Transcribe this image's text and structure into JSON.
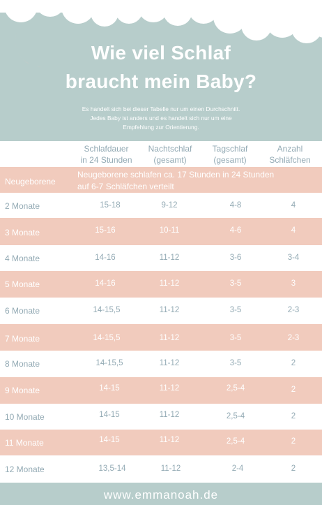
{
  "title": {
    "line1": "Wie viel Schlaf",
    "line2": "braucht mein Baby?"
  },
  "subtitle": [
    "Es handelt sich bei dieser Tabelle nur um einen Durchschnitt.",
    "Jedes Baby ist anders und es handelt sich nur um eine",
    "Empfehlung zur Orientierung."
  ],
  "columns": [
    [
      "Schlafdauer",
      "in 24 Stunden"
    ],
    [
      "Nachtschlaf",
      "(gesamt)"
    ],
    [
      "Tagschlaf",
      "(gesamt)"
    ],
    [
      "Anzahl",
      "Schläfchen"
    ]
  ],
  "newborn": {
    "label": "Neugeborene",
    "note": [
      "Neugeborene schlafen ca. 17 Stunden in 24 Stunden",
      "auf 6-7 Schläfchen verteilt"
    ]
  },
  "rows": [
    {
      "label": "2 Monate",
      "total": "15-18",
      "night": "9-12",
      "day": "4-8",
      "naps": "4"
    },
    {
      "label": "3 Monate",
      "total": "15-16",
      "night": "10-11",
      "day": "4-6",
      "naps": "4"
    },
    {
      "label": "4 Monate",
      "total": "14-16",
      "night": "11-12",
      "day": "3-6",
      "naps": "3-4"
    },
    {
      "label": "5 Monate",
      "total": "14-16",
      "night": "11-12",
      "day": "3-5",
      "naps": "3"
    },
    {
      "label": "6 Monate",
      "total": "14-15,5",
      "night": "11-12",
      "day": "3-5",
      "naps": "2-3"
    },
    {
      "label": "7 Monate",
      "total": "14-15,5",
      "night": "11-12",
      "day": "3-5",
      "naps": "2-3"
    },
    {
      "label": "8 Monate",
      "total": "14-15,5",
      "night": "11-12",
      "day": "3-5",
      "naps": "2"
    },
    {
      "label": "9 Monate",
      "total": "14-15",
      "night": "11-12",
      "day": "2,5-4",
      "naps": "2"
    },
    {
      "label": "10 Monate",
      "total": "14-15",
      "night": "11-12",
      "day": "2,5-4",
      "naps": "2"
    },
    {
      "label": "11 Monate",
      "total": "14-15",
      "night": "11-12",
      "day": "2,5-4",
      "naps": "2"
    },
    {
      "label": "12 Monate",
      "total": "13,5-14",
      "night": "11-12",
      "day": "2-4",
      "naps": "2"
    }
  ],
  "footer": "www.emmanoah.de",
  "colors": {
    "teal": "#b7cdcb",
    "pink": "#f1cbbd",
    "text": "#93aab4",
    "white": "#ffffff"
  }
}
